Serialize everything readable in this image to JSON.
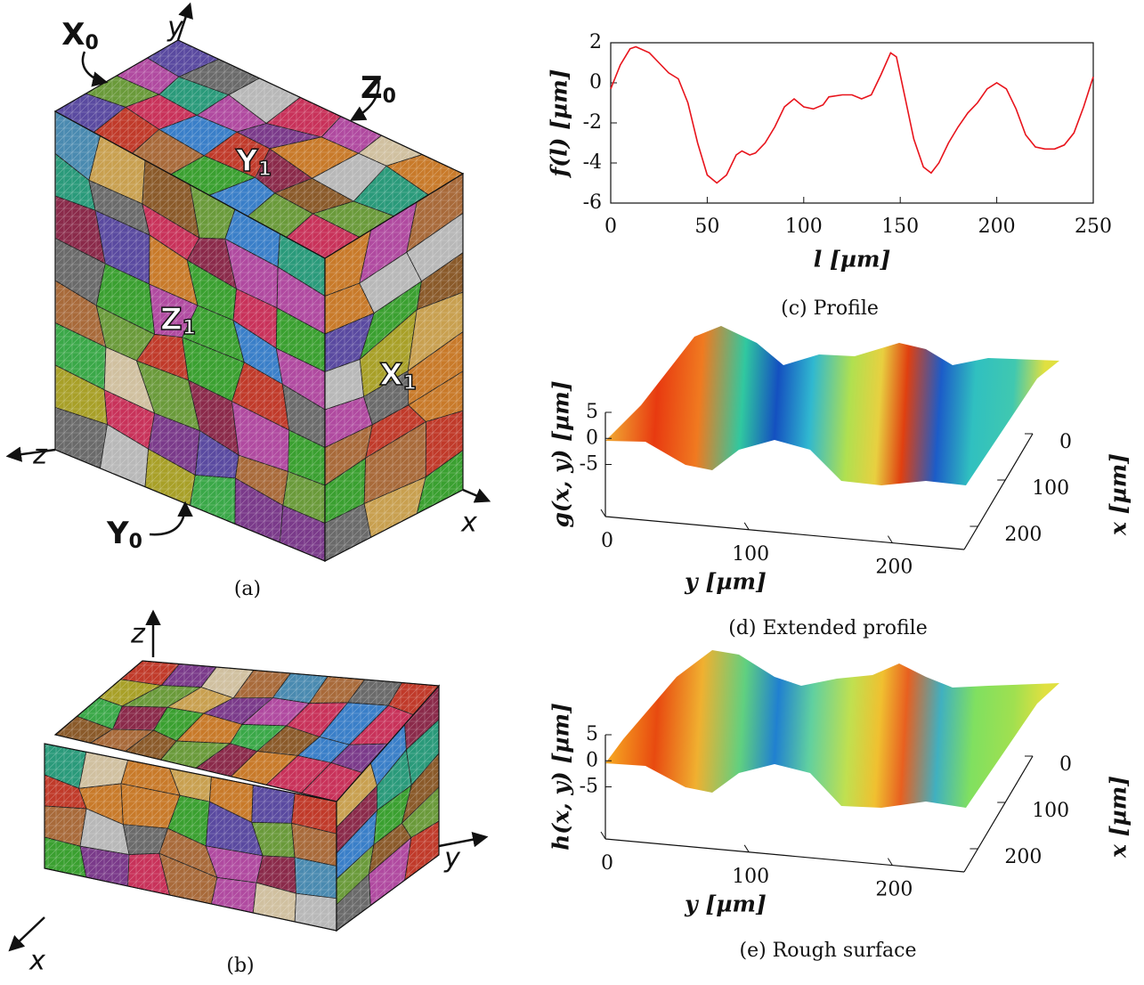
{
  "figure_a": {
    "caption": "(a)",
    "axes": {
      "x": "x",
      "y": "y",
      "z": "z"
    },
    "labels": [
      {
        "text": "X",
        "sub": "0"
      },
      {
        "text": "Z",
        "sub": "0"
      },
      {
        "text": "Y",
        "sub": "1"
      },
      {
        "text": "Z",
        "sub": "1"
      },
      {
        "text": "X",
        "sub": "1"
      },
      {
        "text": "Y",
        "sub": "0"
      }
    ]
  },
  "figure_b": {
    "caption": "(b)",
    "axes": {
      "x": "x",
      "y": "y",
      "z": "z"
    }
  },
  "chart_data": [
    {
      "type": "line",
      "caption": "(c) Profile",
      "xlabel": "l [µm]",
      "ylabel": "f(l) [µm]",
      "color": "#e8141c",
      "x": [
        0,
        5,
        10,
        13,
        20,
        25,
        30,
        35,
        40,
        45,
        50,
        55,
        60,
        65,
        68,
        72,
        75,
        80,
        85,
        90,
        95,
        100,
        105,
        110,
        113,
        120,
        125,
        130,
        135,
        140,
        145,
        148,
        152,
        157,
        162,
        166,
        170,
        175,
        180,
        185,
        190,
        195,
        200,
        205,
        210,
        215,
        220,
        225,
        230,
        235,
        240,
        245,
        250
      ],
      "values": [
        -0.3,
        0.9,
        1.7,
        1.8,
        1.5,
        1.0,
        0.5,
        0.2,
        -1.0,
        -3.0,
        -4.6,
        -5.0,
        -4.6,
        -3.6,
        -3.4,
        -3.6,
        -3.5,
        -3.0,
        -2.2,
        -1.2,
        -0.8,
        -1.2,
        -1.3,
        -1.1,
        -0.7,
        -0.6,
        -0.6,
        -0.8,
        -0.6,
        0.4,
        1.5,
        1.3,
        -0.5,
        -2.8,
        -4.2,
        -4.5,
        -4.0,
        -3.0,
        -2.2,
        -1.5,
        -1.0,
        -0.3,
        0.0,
        -0.3,
        -1.3,
        -2.6,
        -3.2,
        -3.3,
        -3.3,
        -3.1,
        -2.5,
        -1.2,
        0.3
      ],
      "xlim": [
        0,
        250
      ],
      "ylim": [
        -6,
        2
      ],
      "xticks": [
        0,
        50,
        100,
        150,
        200,
        250
      ],
      "yticks": [
        -6,
        -4,
        -2,
        0,
        2
      ]
    },
    {
      "type": "surface",
      "caption": "(d) Extended profile",
      "xlabel": "x [µm]",
      "ylabel": "y [µm]",
      "zlabel": "g(x, y) [µm]",
      "xlim": [
        0,
        250
      ],
      "ylim": [
        0,
        250
      ],
      "zlim": [
        -15,
        5
      ],
      "xticks": [
        0,
        100,
        200
      ],
      "yticks": [
        0,
        100,
        200
      ],
      "zticks": [
        5,
        0,
        -5
      ]
    },
    {
      "type": "surface",
      "caption": "(e) Rough surface",
      "xlabel": "x [µm]",
      "ylabel": "y [µm]",
      "zlabel": "h(x, y) [µm]",
      "xlim": [
        0,
        250
      ],
      "ylim": [
        0,
        250
      ],
      "zlim": [
        -15,
        5
      ],
      "xticks": [
        0,
        100,
        200
      ],
      "yticks": [
        0,
        100,
        200
      ],
      "zticks": [
        5,
        0,
        -5
      ]
    }
  ]
}
